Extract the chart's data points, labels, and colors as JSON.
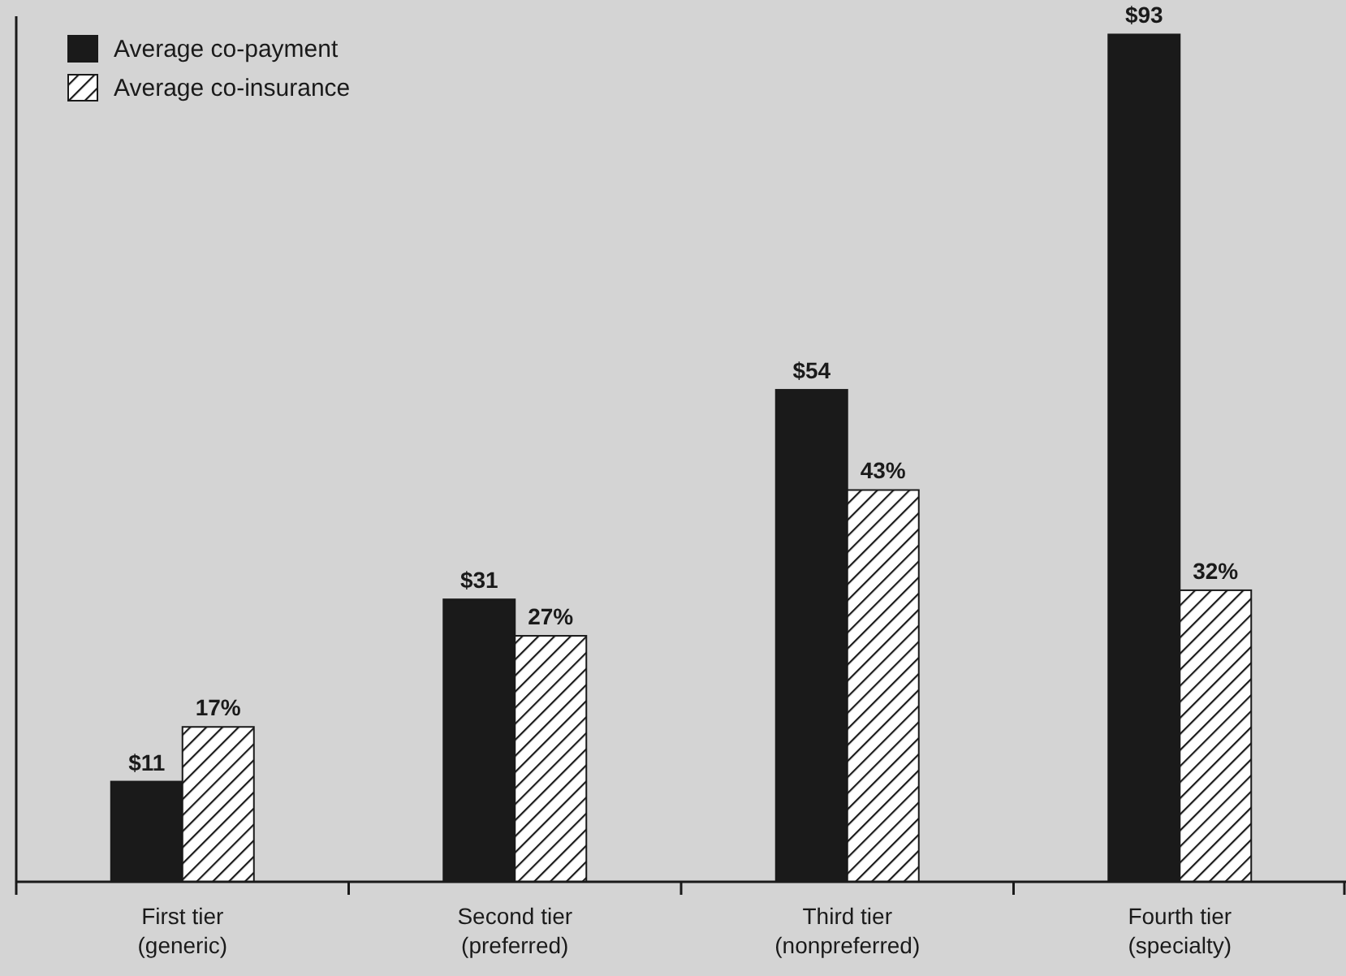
{
  "chart_data": {
    "type": "bar",
    "categories": [
      "First tier\n(generic)",
      "Second tier\n(preferred)",
      "Third tier\n(nonpreferred)",
      "Fourth tier\n(specialty)"
    ],
    "series": [
      {
        "name": "Average co-payment",
        "color": "#1a1a1a",
        "values": [
          11,
          31,
          54,
          93
        ],
        "value_labels": [
          "$11",
          "$31",
          "$54",
          "$93"
        ]
      },
      {
        "name": "Average co-insurance",
        "color": "#1a1a1a",
        "values": [
          17,
          27,
          43,
          32
        ],
        "value_labels": [
          "17%",
          "27%",
          "43%",
          "32%"
        ]
      }
    ],
    "ylim": [
      0,
      95
    ],
    "tick_labels": "x",
    "legend": "top left"
  }
}
